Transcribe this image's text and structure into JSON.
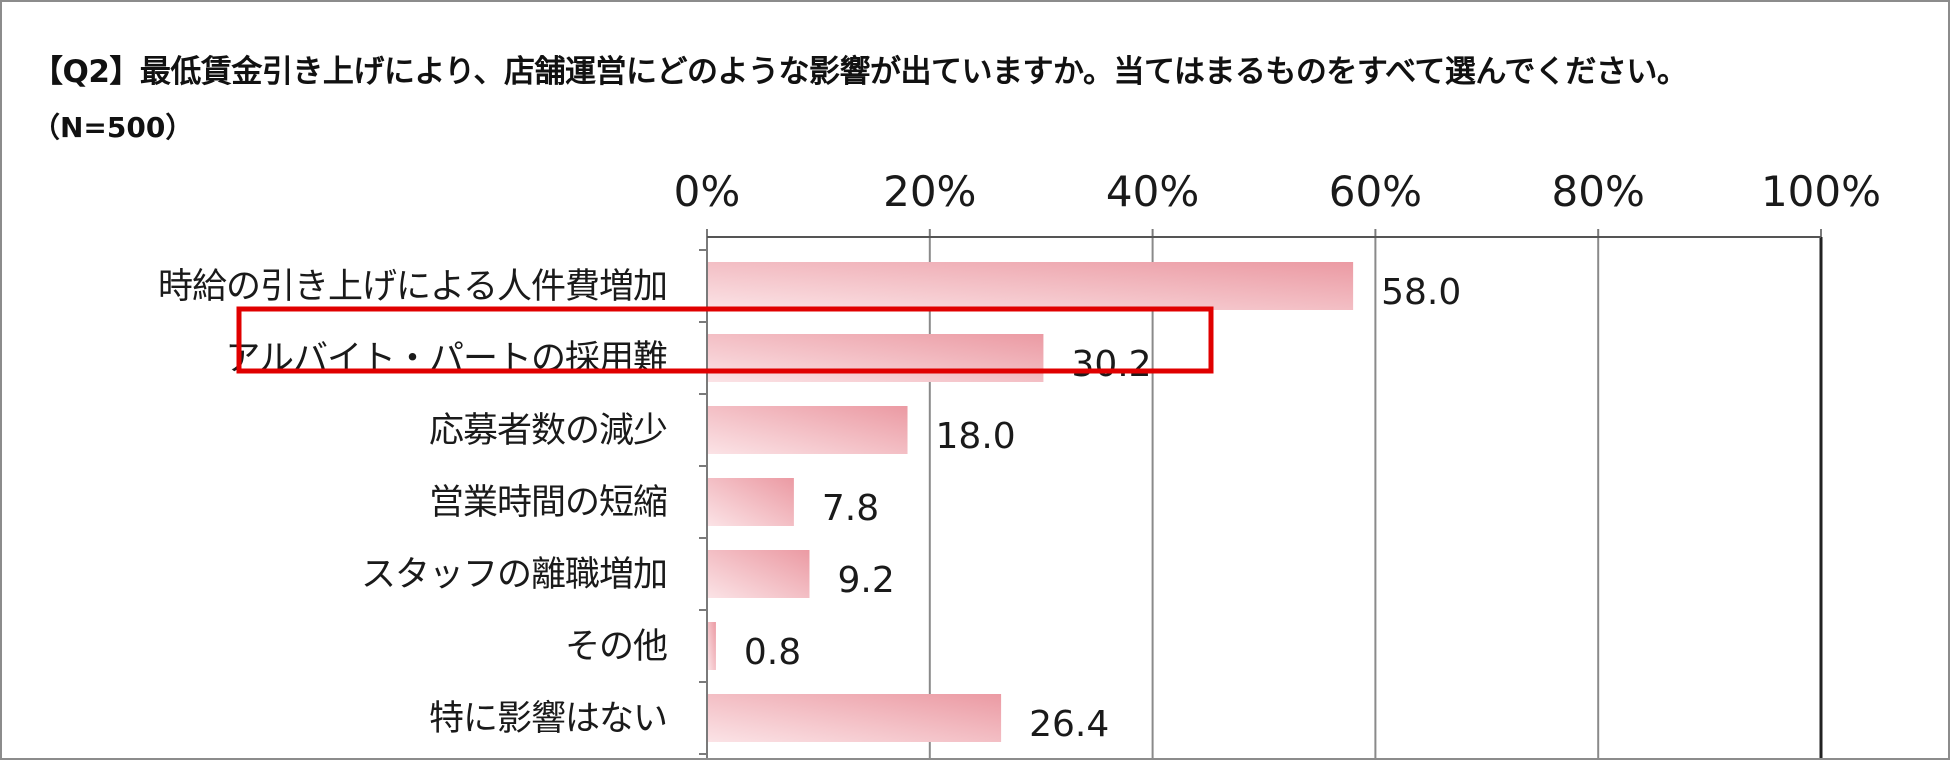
{
  "header": {
    "title": "【Q2】最低賃金引き上げにより、店舗運営にどのような影響が出ていますか。当てはまるものをすべて選んでください。",
    "subtitle": "（N=500）"
  },
  "chart_data": {
    "type": "bar",
    "orientation": "horizontal",
    "categories": [
      "時給の引き上げによる人件費増加",
      "アルバイト・パートの採用難",
      "応募者数の減少",
      "営業時間の短縮",
      "スタッフの離職増加",
      "その他",
      "特に影響はない"
    ],
    "values": [
      58.0,
      30.2,
      18.0,
      7.8,
      9.2,
      0.8,
      26.4
    ],
    "value_labels": [
      "58.0",
      "30.2",
      "18.0",
      "7.8",
      "9.2",
      "0.8",
      "26.4"
    ],
    "xlim": [
      0,
      100
    ],
    "x_ticks": [
      0,
      20,
      40,
      60,
      80,
      100
    ],
    "x_tick_labels": [
      "0%",
      "20%",
      "40%",
      "60%",
      "80%",
      "100%"
    ],
    "x_axis_position": "top",
    "grid": true,
    "highlighted_category_index": 1,
    "colors": {
      "bar_light": "#fbe3e6",
      "bar_dark": "#eb9aa3",
      "highlight_box": "#e00000",
      "gridline": "#8a8a8a"
    }
  }
}
